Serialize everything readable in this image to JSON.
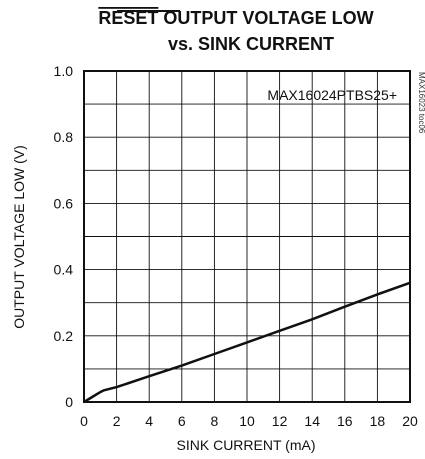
{
  "chart_data": {
    "type": "line",
    "title_overline": "RESET",
    "title_line1_rest": " OUTPUT VOLTAGE LOW",
    "title_line2": "vs. SINK CURRENT",
    "xlabel": "SINK CURRENT (mA)",
    "ylabel": "OUTPUT VOLTAGE LOW (V)",
    "xlim": [
      0,
      20
    ],
    "ylim": [
      0,
      1.0
    ],
    "x_ticks": [
      "0",
      "2",
      "4",
      "6",
      "8",
      "10",
      "12",
      "14",
      "16",
      "18",
      "20"
    ],
    "y_ticks": [
      "0",
      "0.2",
      "0.4",
      "0.6",
      "0.8",
      "1.0"
    ],
    "grid": true,
    "annotation": "MAX16024PTBS25+",
    "figure_id": "MAX16023 toc06",
    "series": [
      {
        "x": [
          0,
          0.5,
          1,
          1.2,
          2,
          4,
          6,
          8,
          10,
          12,
          14,
          16,
          18,
          20
        ],
        "values": [
          0,
          0.015,
          0.03,
          0.035,
          0.045,
          0.078,
          0.11,
          0.145,
          0.18,
          0.215,
          0.25,
          0.288,
          0.325,
          0.36
        ]
      }
    ]
  }
}
